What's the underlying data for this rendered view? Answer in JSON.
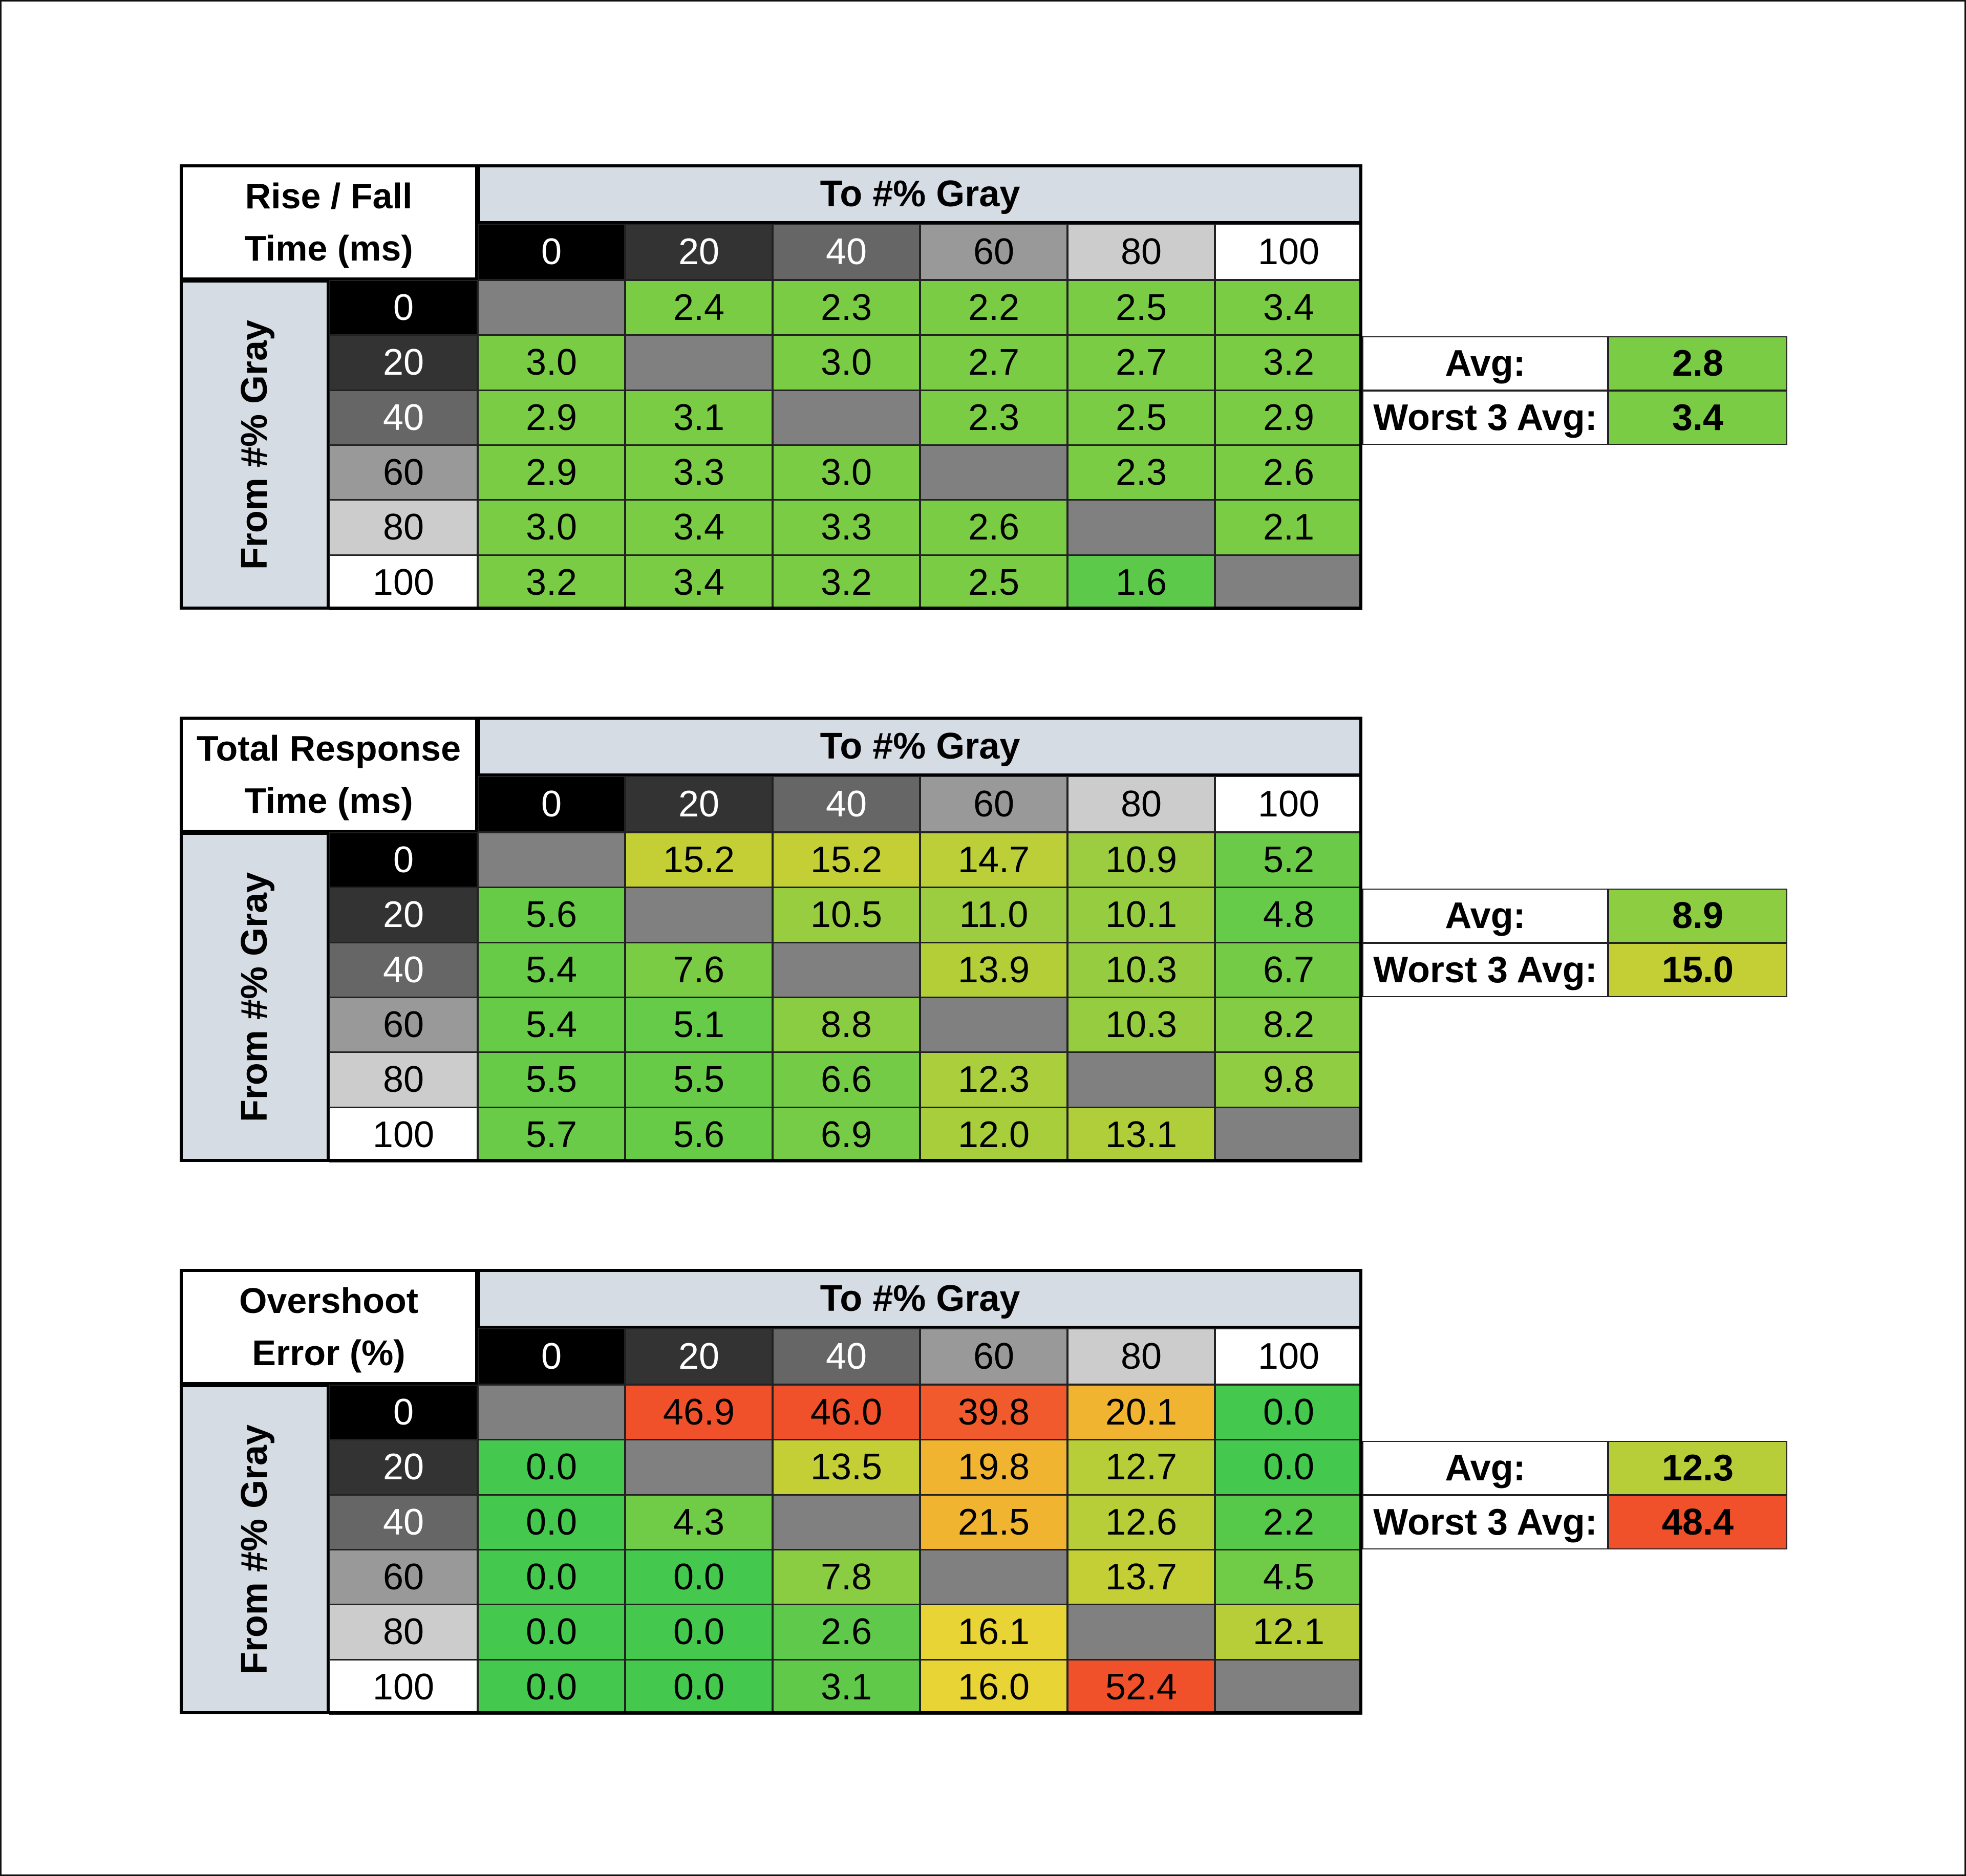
{
  "chart_data": [
    {
      "type": "table",
      "title_lines": [
        "Rise / Fall",
        "Time (ms)"
      ],
      "column_header": "To #% Gray",
      "row_header": "From #% Gray",
      "columns": [
        "0",
        "20",
        "40",
        "60",
        "80",
        "100"
      ],
      "rows": [
        "0",
        "20",
        "40",
        "60",
        "80",
        "100"
      ],
      "values": [
        [
          null,
          2.4,
          2.3,
          2.2,
          2.5,
          3.4
        ],
        [
          3.0,
          null,
          3.0,
          2.7,
          2.7,
          3.2
        ],
        [
          2.9,
          3.1,
          null,
          2.3,
          2.5,
          2.9
        ],
        [
          2.9,
          3.3,
          3.0,
          null,
          2.3,
          2.6
        ],
        [
          3.0,
          3.4,
          3.3,
          2.6,
          null,
          2.1
        ],
        [
          3.2,
          3.4,
          3.2,
          2.5,
          1.6,
          null
        ]
      ],
      "colors": [
        [
          null,
          "#7acc44",
          "#7acc44",
          "#7acc44",
          "#7acc44",
          "#7acc44"
        ],
        [
          "#7acc44",
          null,
          "#7acc44",
          "#7acc44",
          "#7acc44",
          "#7acc44"
        ],
        [
          "#7acc44",
          "#7acc44",
          null,
          "#7acc44",
          "#7acc44",
          "#7acc44"
        ],
        [
          "#7acc44",
          "#7acc44",
          "#7acc44",
          null,
          "#7acc44",
          "#7acc44"
        ],
        [
          "#7acc44",
          "#7acc44",
          "#7acc44",
          "#7acc44",
          null,
          "#7acc44"
        ],
        [
          "#7acc44",
          "#7acc44",
          "#7acc44",
          "#7acc44",
          "#5cc94a",
          null
        ]
      ],
      "summary": [
        {
          "label": "Avg:",
          "value": "2.8",
          "color": "#7acc44"
        },
        {
          "label": "Worst 3 Avg:",
          "value": "3.4",
          "color": "#7acc44"
        }
      ]
    },
    {
      "type": "table",
      "title_lines": [
        "Total Response",
        "Time (ms)"
      ],
      "column_header": "To #% Gray",
      "row_header": "From #% Gray",
      "columns": [
        "0",
        "20",
        "40",
        "60",
        "80",
        "100"
      ],
      "rows": [
        "0",
        "20",
        "40",
        "60",
        "80",
        "100"
      ],
      "values": [
        [
          null,
          15.2,
          15.2,
          14.7,
          10.9,
          5.2
        ],
        [
          5.6,
          null,
          10.5,
          11.0,
          10.1,
          4.8
        ],
        [
          5.4,
          7.6,
          null,
          13.9,
          10.3,
          6.7
        ],
        [
          5.4,
          5.1,
          8.8,
          null,
          10.3,
          8.2
        ],
        [
          5.5,
          5.5,
          6.6,
          12.3,
          null,
          9.8
        ],
        [
          5.7,
          5.6,
          6.9,
          12.0,
          13.1,
          null
        ]
      ],
      "colors": [
        [
          null,
          "#c4cf36",
          "#c4cf36",
          "#bccf38",
          "#9ccd40",
          "#6bcb48"
        ],
        [
          "#68cb48",
          null,
          "#98cd40",
          "#9ccd40",
          "#96cd40",
          "#66cb48"
        ],
        [
          "#68cb48",
          "#7acc44",
          null,
          "#b4ce38",
          "#96cd40",
          "#74cc46"
        ],
        [
          "#68cb48",
          "#66cb48",
          "#8acc42",
          null,
          "#96cd40",
          "#84cc44"
        ],
        [
          "#68cb48",
          "#68cb48",
          "#74cc46",
          "#aace3c",
          null,
          "#90cd42"
        ],
        [
          "#6acb48",
          "#68cb48",
          "#76cc46",
          "#a8ce3c",
          "#b0ce3a",
          null
        ]
      ],
      "summary": [
        {
          "label": "Avg:",
          "value": "8.9",
          "color": "#8ccd42"
        },
        {
          "label": "Worst 3 Avg:",
          "value": "15.0",
          "color": "#c4cf36"
        }
      ]
    },
    {
      "type": "table",
      "title_lines": [
        "Overshoot",
        "Error (%)"
      ],
      "column_header": "To #% Gray",
      "row_header": "From #% Gray",
      "columns": [
        "0",
        "20",
        "40",
        "60",
        "80",
        "100"
      ],
      "rows": [
        "0",
        "20",
        "40",
        "60",
        "80",
        "100"
      ],
      "values": [
        [
          null,
          46.9,
          46.0,
          39.8,
          20.1,
          0.0
        ],
        [
          0.0,
          null,
          13.5,
          19.8,
          12.7,
          0.0
        ],
        [
          0.0,
          4.3,
          null,
          21.5,
          12.6,
          2.2
        ],
        [
          0.0,
          0.0,
          7.8,
          null,
          13.7,
          4.5
        ],
        [
          0.0,
          0.0,
          2.6,
          16.1,
          null,
          12.1
        ],
        [
          0.0,
          0.0,
          3.1,
          16.0,
          52.4,
          null
        ]
      ],
      "colors": [
        [
          null,
          "#f0502a",
          "#f0502a",
          "#f05a2c",
          "#f0b430",
          "#44c84e"
        ],
        [
          "#44c84e",
          null,
          "#c4cf36",
          "#f0b430",
          "#b8ce38",
          "#44c84e"
        ],
        [
          "#44c84e",
          "#70cb46",
          null,
          "#f0b430",
          "#b8ce38",
          "#56c94a"
        ],
        [
          "#44c84e",
          "#44c84e",
          "#8acc42",
          null,
          "#c4cf36",
          "#70cb46"
        ],
        [
          "#44c84e",
          "#44c84e",
          "#5ec94a",
          "#e8d434",
          null,
          "#b8ce38"
        ],
        [
          "#44c84e",
          "#44c84e",
          "#60c94a",
          "#e8d434",
          "#f0502a",
          null
        ]
      ],
      "summary": [
        {
          "label": "Avg:",
          "value": "12.3",
          "color": "#b8ce38"
        },
        {
          "label": "Worst 3 Avg:",
          "value": "48.4",
          "color": "#f0502a"
        }
      ]
    }
  ],
  "colors": {
    "header_fill": "#d6dce4",
    "diagonal_fill": "#808080",
    "gray_levels": {
      "0": {
        "bg": "#000000",
        "fg": "#ffffff"
      },
      "20": {
        "bg": "#333333",
        "fg": "#ffffff"
      },
      "40": {
        "bg": "#666666",
        "fg": "#ffffff"
      },
      "60": {
        "bg": "#999999",
        "fg": "#000000"
      },
      "80": {
        "bg": "#cccccc",
        "fg": "#000000"
      },
      "100": {
        "bg": "#ffffff",
        "fg": "#000000"
      }
    }
  }
}
